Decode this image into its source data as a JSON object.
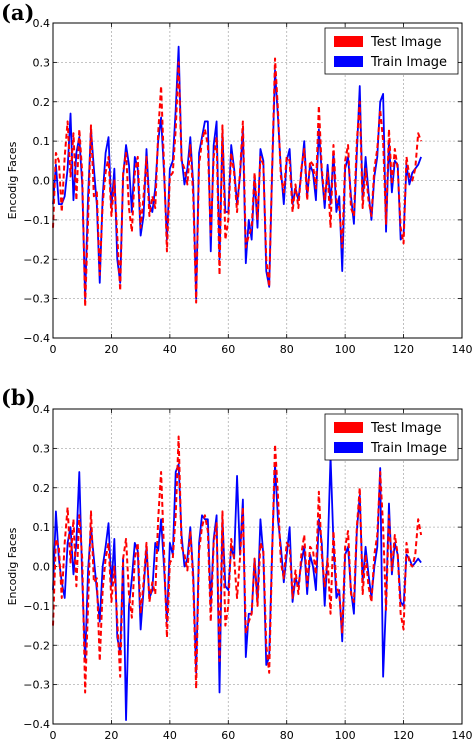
{
  "chart_data": [
    {
      "panel": "(a)",
      "type": "line",
      "ylabel": "Encodig Faces",
      "xlim": [
        0,
        140
      ],
      "ylim": [
        -0.4,
        0.4
      ],
      "xticks": [
        "0",
        "20",
        "40",
        "60",
        "80",
        "100",
        "120",
        "140"
      ],
      "yticks": [
        "0.4",
        "0.3",
        "0.2",
        "0.1",
        "0.0",
        "−0.1",
        "−0.2",
        "−0.3",
        "−0.4"
      ],
      "grid": true,
      "legend_position": "top-right",
      "series": [
        {
          "name": "Train Image",
          "color": "#0000ff",
          "style": "solid",
          "values": [
            -0.06,
            0.04,
            -0.06,
            -0.06,
            -0.04,
            0.03,
            0.17,
            -0.05,
            0.07,
            0.11,
            -0.01,
            -0.3,
            -0.04,
            0.13,
            0.03,
            -0.06,
            -0.26,
            -0.04,
            0.07,
            0.11,
            -0.07,
            0.03,
            -0.2,
            -0.26,
            0.01,
            0.09,
            0.04,
            -0.08,
            0.06,
            0.03,
            -0.14,
            -0.09,
            0.08,
            -0.06,
            -0.08,
            -0.02,
            0.1,
            0.16,
            0.02,
            -0.15,
            0.03,
            0.05,
            0.18,
            0.34,
            0.06,
            -0.01,
            0.03,
            0.11,
            -0.01,
            -0.3,
            0.07,
            0.11,
            0.15,
            0.15,
            -0.18,
            0.09,
            0.15,
            -0.2,
            0.12,
            -0.08,
            -0.08,
            0.09,
            0.03,
            -0.06,
            0.01,
            0.13,
            -0.21,
            -0.1,
            -0.15,
            0.01,
            -0.12,
            0.08,
            0.05,
            -0.23,
            -0.27,
            0.02,
            0.28,
            0.16,
            0.03,
            -0.06,
            0.05,
            0.08,
            -0.06,
            -0.02,
            -0.05,
            0.02,
            0.1,
            -0.04,
            0.04,
            0.02,
            -0.05,
            0.13,
            0.02,
            -0.07,
            0.04,
            -0.06,
            0.07,
            -0.08,
            -0.04,
            -0.23,
            0.03,
            0.06,
            -0.04,
            -0.11,
            0.07,
            0.24,
            -0.05,
            0.06,
            -0.03,
            -0.1,
            0.01,
            0.06,
            0.2,
            0.22,
            -0.13,
            0.1,
            -0.03,
            0.05,
            0.04,
            -0.15,
            -0.14,
            0.04,
            -0.01,
            0.02,
            0.03,
            0.04,
            0.06
          ]
        },
        {
          "name": "Test Image",
          "color": "#ff0000",
          "style": "dashed",
          "values": [
            -0.12,
            0.07,
            0.05,
            -0.08,
            0.06,
            0.15,
            0.01,
            0.12,
            -0.05,
            0.13,
            0.02,
            -0.32,
            -0.1,
            0.14,
            -0.04,
            -0.03,
            -0.24,
            -0.06,
            0.02,
            0.06,
            -0.09,
            0.0,
            -0.14,
            -0.28,
            0.02,
            0.07,
            -0.07,
            -0.13,
            0.02,
            0.06,
            -0.12,
            -0.04,
            0.06,
            -0.09,
            -0.04,
            -0.07,
            0.12,
            0.24,
            0.04,
            -0.18,
            0.01,
            0.02,
            0.13,
            0.3,
            0.05,
            0.03,
            -0.01,
            0.09,
            -0.04,
            -0.31,
            0.04,
            0.1,
            0.13,
            0.09,
            -0.14,
            0.06,
            0.11,
            -0.24,
            0.14,
            -0.15,
            -0.1,
            0.07,
            0.02,
            -0.08,
            0.02,
            0.15,
            -0.17,
            -0.14,
            -0.12,
            0.02,
            -0.1,
            0.06,
            0.04,
            -0.2,
            -0.27,
            0.03,
            0.31,
            0.18,
            0.01,
            -0.03,
            0.06,
            0.05,
            -0.08,
            -0.01,
            -0.07,
            0.03,
            0.08,
            -0.05,
            0.05,
            0.04,
            -0.02,
            0.19,
            0.03,
            -0.05,
            0.02,
            -0.12,
            0.09,
            -0.05,
            -0.07,
            -0.17,
            0.05,
            0.09,
            -0.07,
            -0.09,
            0.1,
            0.2,
            -0.07,
            0.03,
            -0.05,
            -0.09,
            0.03,
            0.08,
            0.18,
            0.1,
            -0.11,
            0.13,
            -0.01,
            0.08,
            0.03,
            -0.12,
            -0.16,
            0.06,
            0.01,
            0.0,
            0.03,
            0.12,
            0.1
          ]
        }
      ]
    },
    {
      "panel": "(b)",
      "type": "line",
      "ylabel": "Encodig Faces",
      "xlim": [
        0,
        140
      ],
      "ylim": [
        -0.4,
        0.4
      ],
      "xticks": [
        "0",
        "20",
        "40",
        "60",
        "80",
        "100",
        "120",
        "140"
      ],
      "yticks": [
        "0.4",
        "0.3",
        "0.2",
        "0.1",
        "0.0",
        "−0.1",
        "−0.2",
        "−0.3",
        "−0.4"
      ],
      "grid": true,
      "legend_position": "top-right",
      "series": [
        {
          "name": "Train Image",
          "color": "#0000ff",
          "style": "solid",
          "values": [
            -0.06,
            0.14,
            0.02,
            -0.04,
            -0.08,
            0.06,
            0.1,
            -0.02,
            0.06,
            0.24,
            -0.03,
            -0.24,
            -0.01,
            0.1,
            0.02,
            -0.06,
            -0.14,
            0.0,
            0.05,
            0.11,
            -0.05,
            0.07,
            -0.18,
            -0.22,
            0.02,
            -0.39,
            -0.1,
            -0.03,
            0.06,
            0.04,
            -0.16,
            -0.06,
            0.05,
            -0.08,
            -0.06,
            0.06,
            0.04,
            0.12,
            0.0,
            -0.14,
            0.06,
            0.03,
            0.24,
            0.26,
            0.08,
            0.0,
            0.02,
            0.1,
            -0.02,
            -0.27,
            0.06,
            0.13,
            0.12,
            0.12,
            -0.1,
            0.07,
            0.13,
            -0.32,
            0.12,
            -0.05,
            -0.06,
            0.05,
            0.02,
            0.23,
            0.03,
            0.17,
            -0.23,
            -0.12,
            -0.12,
            0.02,
            -0.09,
            0.12,
            0.03,
            -0.25,
            -0.23,
            0.04,
            0.26,
            0.12,
            0.05,
            -0.04,
            0.03,
            0.1,
            -0.09,
            -0.03,
            -0.05,
            0.01,
            0.05,
            -0.07,
            0.03,
            0.0,
            -0.06,
            0.12,
            0.06,
            -0.1,
            0.03,
            0.28,
            0.06,
            -0.08,
            -0.06,
            -0.19,
            0.03,
            0.05,
            -0.06,
            -0.12,
            0.09,
            0.18,
            -0.04,
            0.05,
            -0.02,
            -0.08,
            0.0,
            0.05,
            0.25,
            -0.28,
            -0.09,
            0.16,
            -0.02,
            0.06,
            0.03,
            -0.09,
            -0.1,
            0.03,
            0.02,
            0.0,
            0.01,
            0.02,
            0.01
          ]
        },
        {
          "name": "Test Image",
          "color": "#ff0000",
          "style": "dashed",
          "values": [
            -0.15,
            0.07,
            0.05,
            -0.08,
            0.06,
            0.15,
            0.01,
            0.12,
            -0.05,
            0.13,
            0.02,
            -0.32,
            -0.1,
            0.14,
            -0.04,
            -0.03,
            -0.24,
            -0.06,
            0.02,
            0.06,
            -0.09,
            0.0,
            -0.14,
            -0.28,
            0.02,
            0.07,
            -0.07,
            -0.13,
            0.02,
            0.06,
            -0.12,
            -0.04,
            0.06,
            -0.09,
            -0.04,
            -0.07,
            0.12,
            0.24,
            0.04,
            -0.18,
            0.01,
            0.02,
            0.13,
            0.33,
            0.05,
            0.03,
            -0.01,
            0.09,
            -0.04,
            -0.31,
            0.04,
            0.1,
            0.13,
            0.09,
            -0.14,
            0.06,
            0.11,
            -0.24,
            0.14,
            -0.15,
            -0.1,
            0.07,
            0.02,
            -0.08,
            0.02,
            0.15,
            -0.17,
            -0.14,
            -0.12,
            0.02,
            -0.1,
            0.06,
            0.04,
            -0.2,
            -0.27,
            0.03,
            0.31,
            0.18,
            0.01,
            -0.03,
            0.06,
            0.05,
            -0.08,
            -0.01,
            -0.07,
            0.03,
            0.08,
            -0.05,
            0.05,
            0.04,
            -0.02,
            0.19,
            0.03,
            -0.05,
            0.02,
            -0.12,
            0.09,
            -0.05,
            -0.07,
            -0.17,
            0.05,
            0.09,
            -0.07,
            -0.09,
            0.1,
            0.2,
            -0.07,
            0.03,
            -0.05,
            -0.09,
            0.03,
            0.08,
            0.24,
            0.1,
            -0.11,
            0.13,
            -0.01,
            0.08,
            0.03,
            -0.12,
            -0.16,
            0.06,
            0.01,
            0.0,
            0.03,
            0.12,
            0.08
          ]
        }
      ]
    }
  ]
}
